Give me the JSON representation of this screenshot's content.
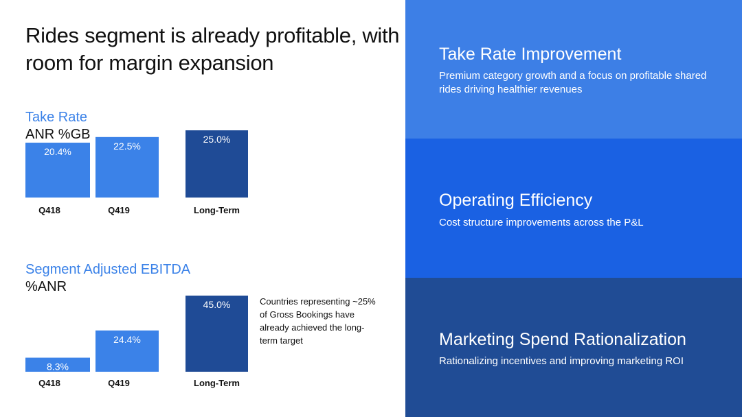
{
  "title": "Rides segment is already profitable, with room for margin expansion",
  "colors": {
    "bar_light": "#3b82e8",
    "bar_dark": "#1f4b96",
    "panel_1": "#3d7fe6",
    "panel_2": "#1a61e3",
    "panel_3": "#204c95"
  },
  "chart_data": [
    {
      "type": "bar",
      "title": "Take Rate",
      "subtitle": "ANR %GB",
      "categories": [
        "Q418",
        "Q419",
        "Long-Term"
      ],
      "values": [
        20.4,
        22.5,
        25.0
      ],
      "labels": [
        "20.4%",
        "22.5%",
        "25.0%"
      ],
      "colors": [
        "#3b82e8",
        "#3b82e8",
        "#1f4b96"
      ],
      "grid": false
    },
    {
      "type": "bar",
      "title": "Segment Adjusted EBITDA",
      "subtitle": "%ANR",
      "categories": [
        "Q418",
        "Q419",
        "Long-Term"
      ],
      "values": [
        8.3,
        24.4,
        45.0
      ],
      "labels": [
        "8.3%",
        "24.4%",
        "45.0%"
      ],
      "colors": [
        "#3b82e8",
        "#3b82e8",
        "#1f4b96"
      ],
      "grid": false
    }
  ],
  "note": "Countries representing ~25% of Gross Bookings have already achieved the long-term target",
  "panels": [
    {
      "heading": "Take Rate Improvement",
      "text": "Premium category growth and a focus on profitable shared rides driving healthier revenues"
    },
    {
      "heading": "Operating Efficiency",
      "text": "Cost structure improvements across the P&L"
    },
    {
      "heading": "Marketing Spend Rationalization",
      "text": "Rationalizing incentives and improving marketing ROI"
    }
  ]
}
